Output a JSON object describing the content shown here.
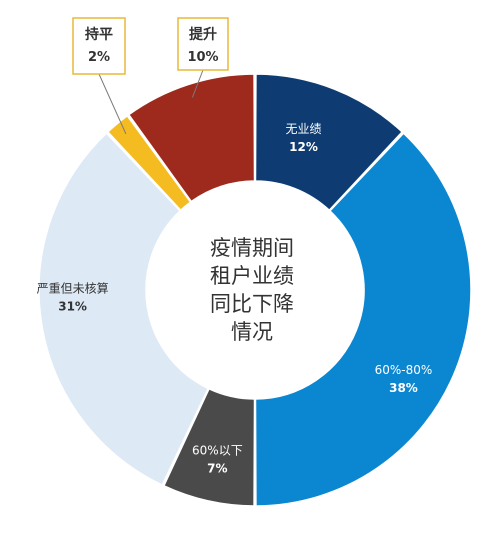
{
  "chart_data": {
    "type": "pie",
    "variant": "donut",
    "title": "",
    "center_text": [
      "疫情期间",
      "租户业绩",
      "同比下降",
      "情况"
    ],
    "slices": [
      {
        "label": "无业绩",
        "value": 12,
        "display": "12%",
        "color": "#0E3C72",
        "label_color": "#ffffff",
        "label_style": "inside"
      },
      {
        "label": "60%-80%",
        "value": 38,
        "display": "38%",
        "color": "#0B86D1",
        "label_color": "#ffffff",
        "label_style": "inside"
      },
      {
        "label": "60%以下",
        "value": 7,
        "display": "7%",
        "color": "#4A4A4A",
        "label_color": "#ffffff",
        "label_style": "inside"
      },
      {
        "label": "严重但未核算",
        "value": 31,
        "display": "31%",
        "color": "#DDE9F5",
        "label_color": "#333333",
        "label_style": "inside"
      },
      {
        "label": "持平",
        "value": 2,
        "display": "2%",
        "color": "#F5BC22",
        "label_color": "#333333",
        "label_style": "callout"
      },
      {
        "label": "提升",
        "value": 10,
        "display": "10%",
        "color": "#9D2A1D",
        "label_color": "#333333",
        "label_style": "callout"
      }
    ],
    "legend": "none"
  }
}
